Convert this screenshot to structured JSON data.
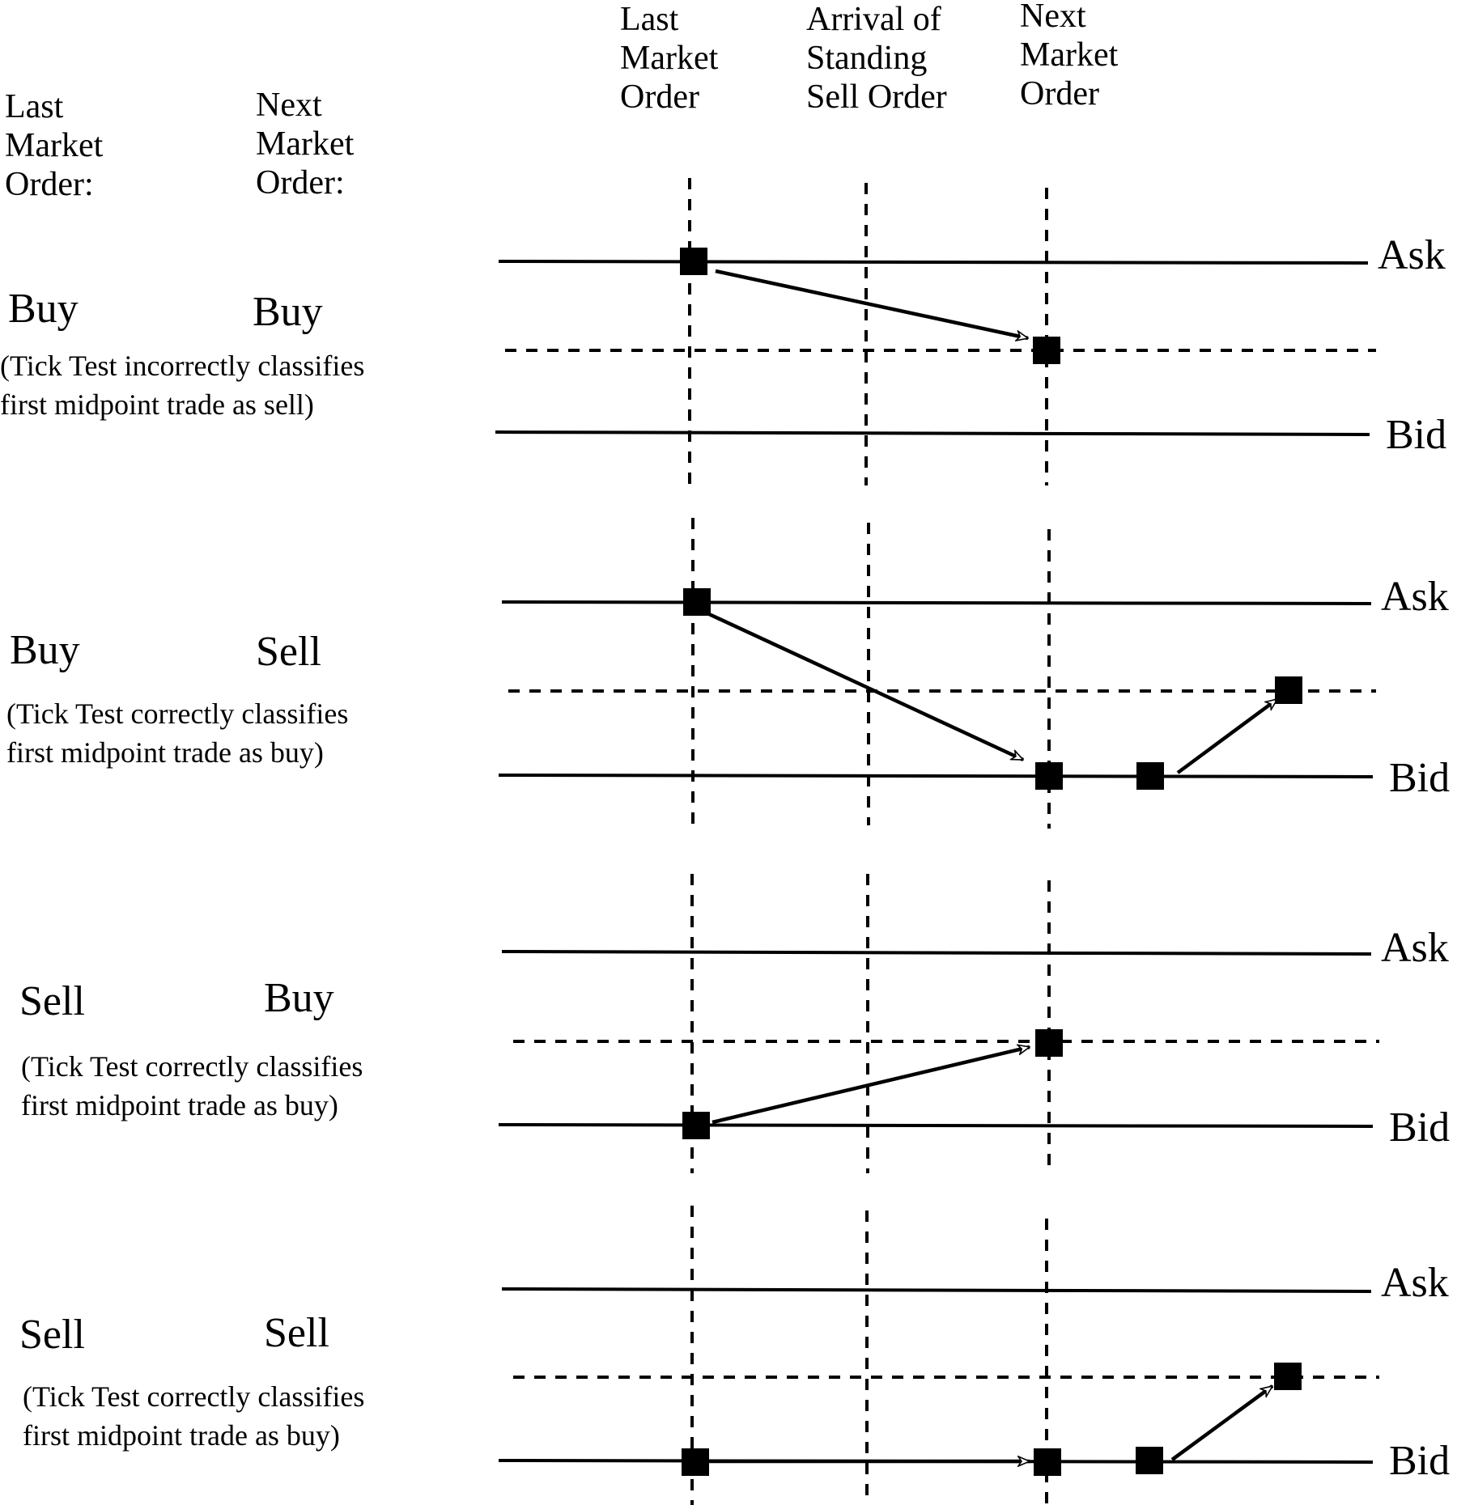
{
  "headers": {
    "left_last": "Last\nMarket\nOrder:",
    "left_next": "Next\nMarket\nOrder:",
    "col_last": "Last\nMarket\nOrder",
    "col_arrival": "Arrival of\nStanding\nSell Order",
    "col_next": "Next\nMarket\nOrder"
  },
  "scenarios": [
    {
      "last": "Buy",
      "next": "Buy",
      "note": "(Tick Test incorrectly classifies\nfirst midpoint trade as sell)",
      "ask_label": "Ask",
      "bid_label": "Bid"
    },
    {
      "last": "Buy",
      "next": "Sell",
      "note": "(Tick Test correctly classifies\nfirst midpoint trade as buy)",
      "ask_label": "Ask",
      "bid_label": "Bid"
    },
    {
      "last": "Sell",
      "next": "Buy",
      "note": "(Tick Test correctly classifies\nfirst midpoint trade as buy)",
      "ask_label": "Ask",
      "bid_label": "Bid"
    },
    {
      "last": "Sell",
      "next": "Sell",
      "note": "(Tick Test correctly classifies\nfirst midpoint trade as buy)",
      "ask_label": "Ask",
      "bid_label": "Bid"
    }
  ]
}
